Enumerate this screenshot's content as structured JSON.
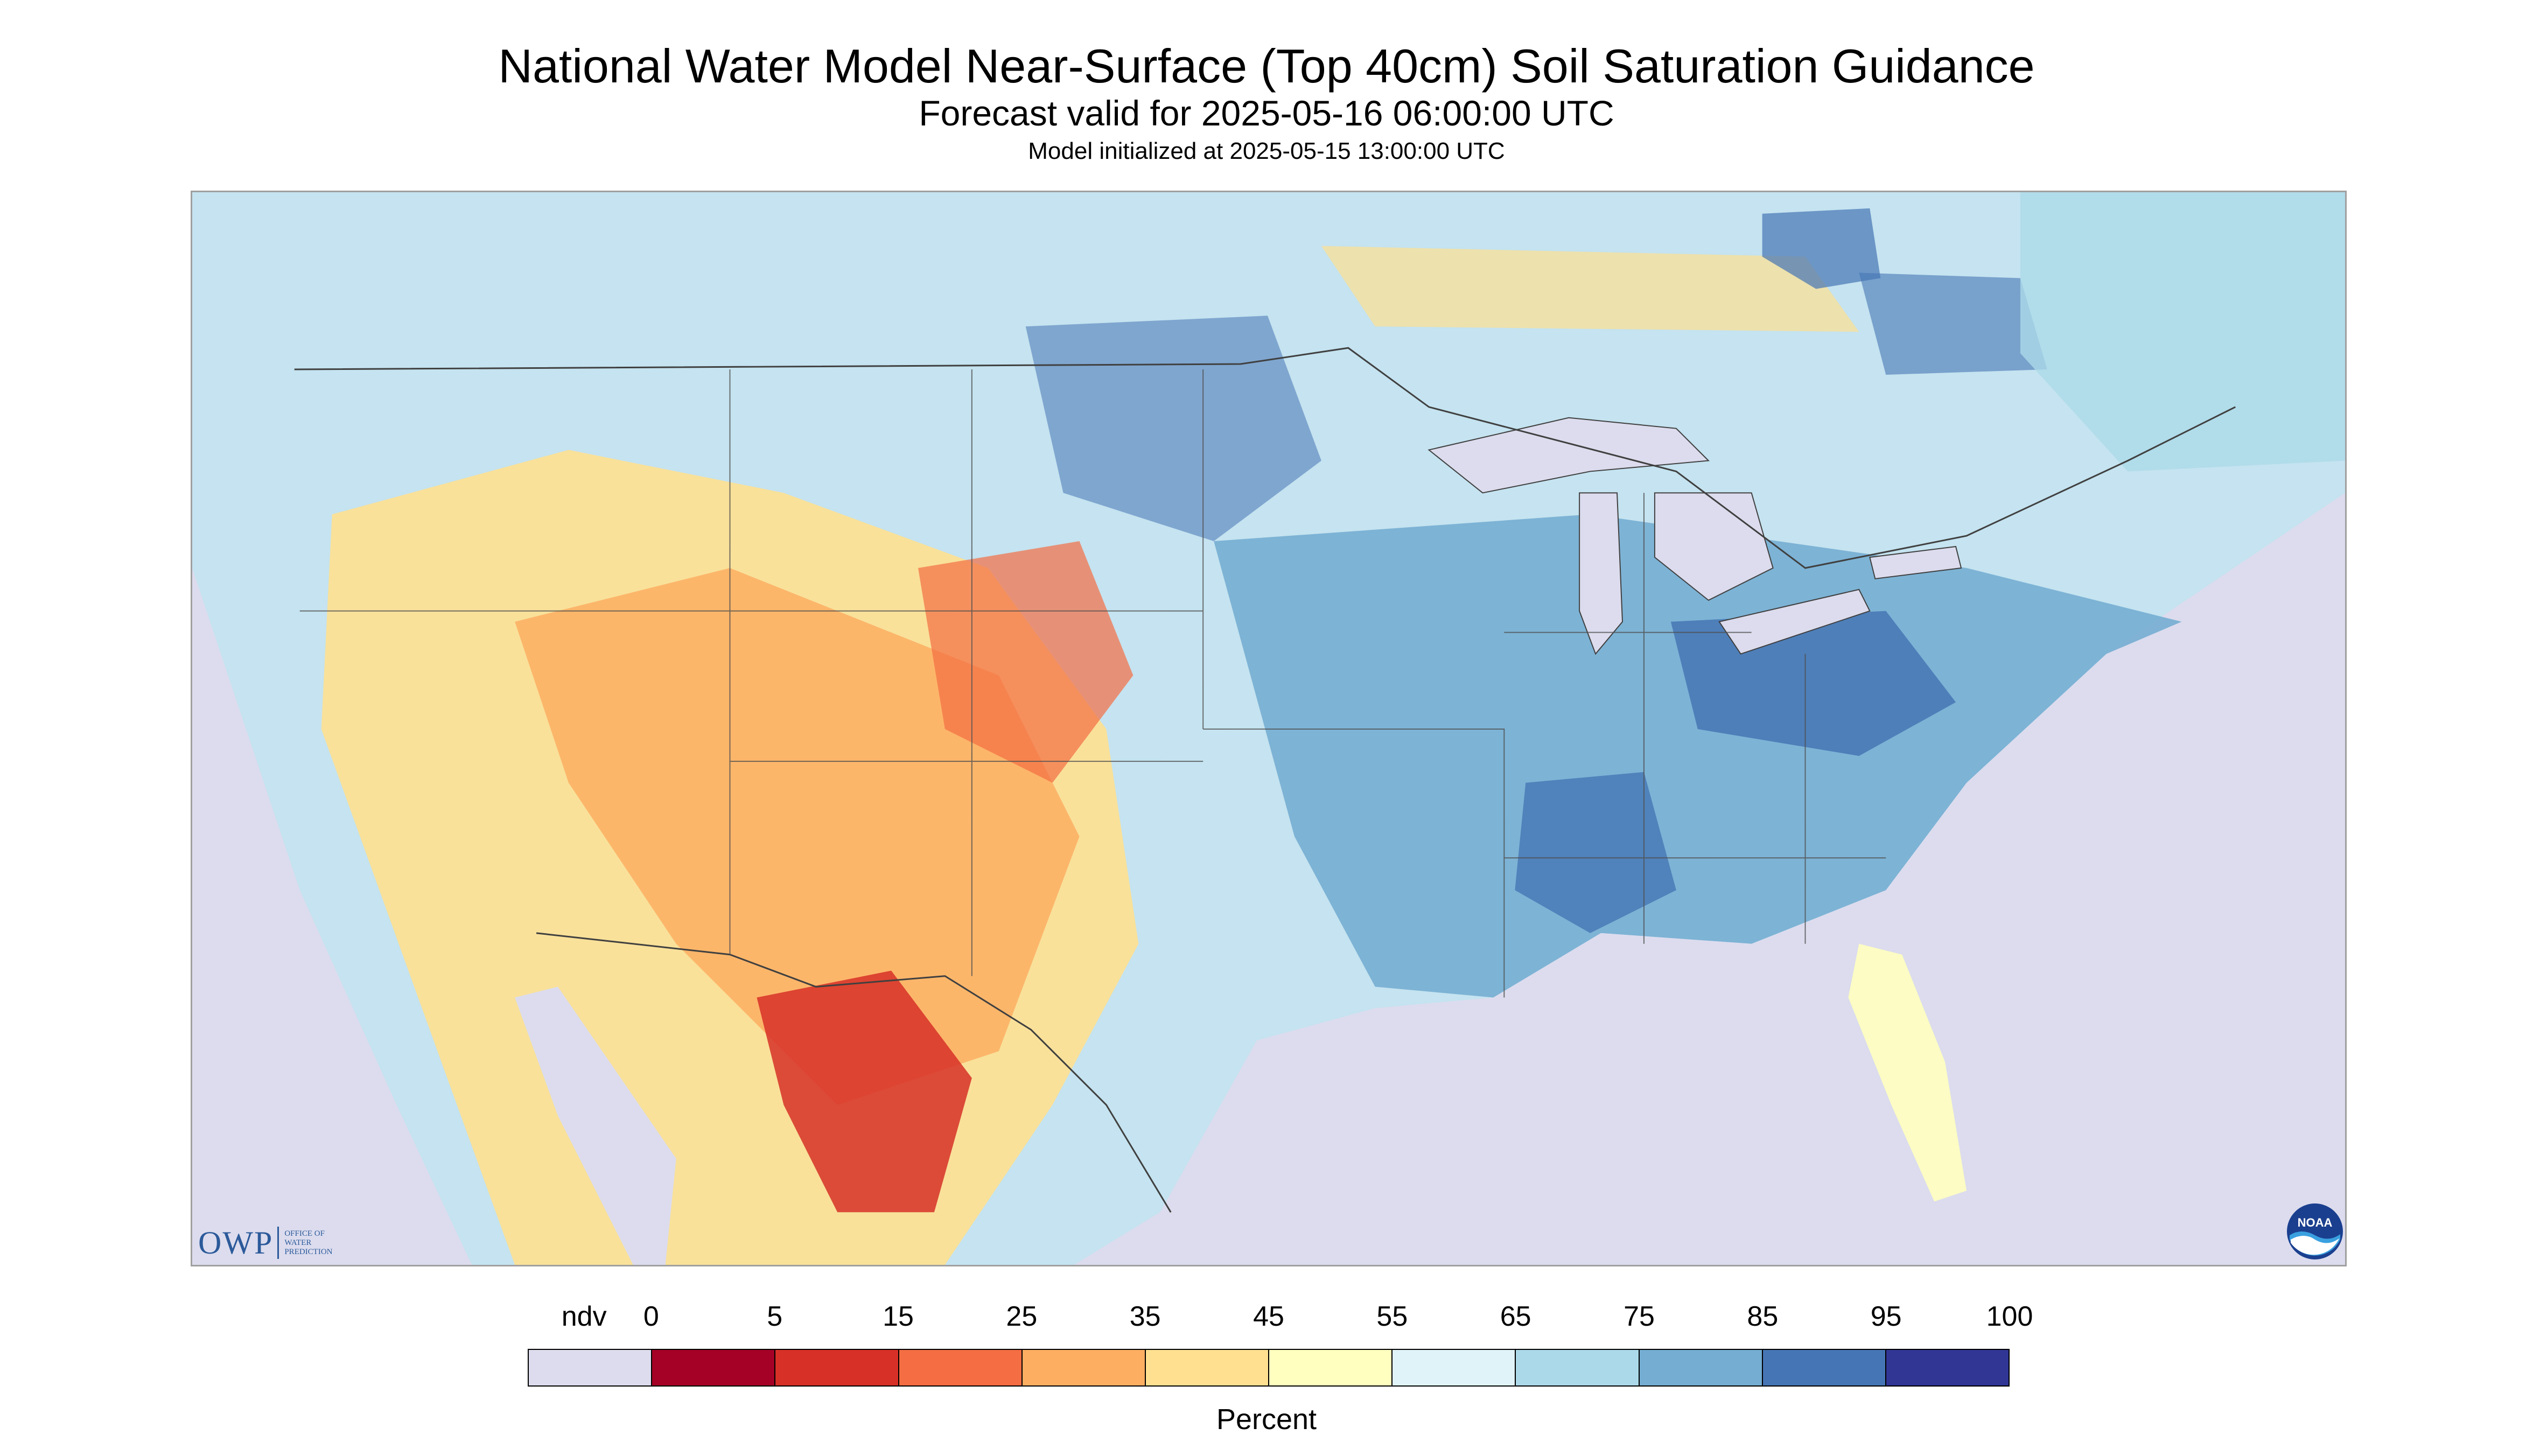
{
  "header": {
    "title": "National Water Model Near-Surface (Top 40cm) Soil Saturation Guidance",
    "forecast": "Forecast valid for 2025-05-16 06:00:00 UTC",
    "initialized": "Model initialized at 2025-05-15 13:00:00 UTC"
  },
  "logos": {
    "owp_letters": "OWP",
    "owp_line1": "OFFICE OF",
    "owp_line2": "WATER",
    "owp_line3": "PREDICTION",
    "noaa_text": "NOAA"
  },
  "legend": {
    "label": "Percent",
    "ticks": [
      "ndv",
      "0",
      "5",
      "15",
      "25",
      "35",
      "45",
      "55",
      "65",
      "75",
      "85",
      "95",
      "100"
    ],
    "colors": [
      "#dcdcee",
      "#a50026",
      "#d73027",
      "#f46d43",
      "#fdae61",
      "#fee090",
      "#ffffbf",
      "#e0f3f8",
      "#abd9e9",
      "#74add1",
      "#4575b4",
      "#313695"
    ]
  },
  "map": {
    "nodata_color": "#dcdcee",
    "water_color": "#dcdcee",
    "border_color": "#404040"
  }
}
